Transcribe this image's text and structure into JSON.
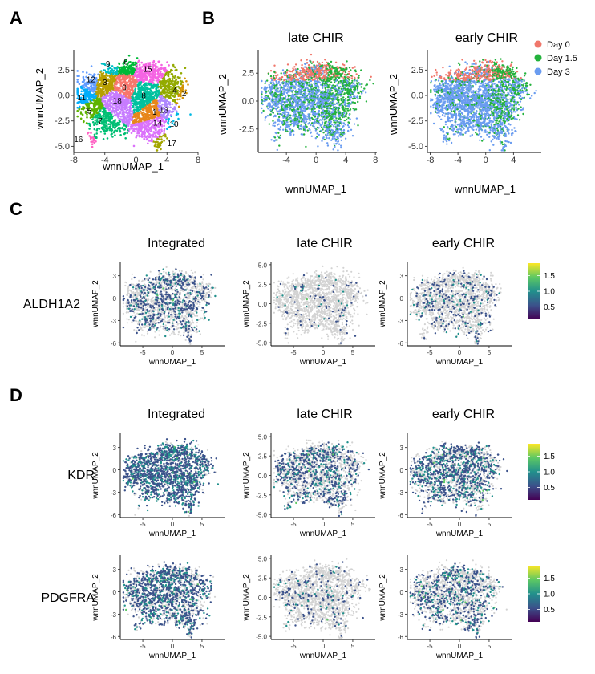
{
  "panels": {
    "A": "A",
    "B": "B",
    "C": "C",
    "D": "D"
  },
  "colors": {
    "grey": "#d3d3d3",
    "day0": "#f0776b",
    "day15": "#23b23c",
    "day3": "#6a9cf0",
    "viridis": [
      "#440154",
      "#3b528b",
      "#21908c",
      "#5dc863",
      "#fde725"
    ]
  },
  "chart_data": [
    {
      "id": "A",
      "type": "scatter",
      "xlabel": "wnnUMAP_1",
      "ylabel": "wnnUMAP_2",
      "xticks": [
        "-8",
        "-4",
        "0",
        "4",
        "8"
      ],
      "yticks": [
        "2.5",
        "0.0",
        "-2.5",
        "-5.0"
      ],
      "xlim": [
        -8,
        8
      ],
      "ylim": [
        -5.6,
        4.5
      ],
      "clusters": [
        {
          "label": "0",
          "x": -1.5,
          "y": 0.8,
          "color": "#f8766d"
        },
        {
          "label": "1",
          "x": 2.4,
          "y": -1.6,
          "color": "#e7861b"
        },
        {
          "label": "2",
          "x": 6.2,
          "y": 0.2,
          "color": "#d39200"
        },
        {
          "label": "3",
          "x": -4.0,
          "y": 1.3,
          "color": "#b79f00"
        },
        {
          "label": "4",
          "x": 5.0,
          "y": 0.5,
          "color": "#93aa00"
        },
        {
          "label": "5",
          "x": -6.0,
          "y": -1.5,
          "color": "#5eb300"
        },
        {
          "label": "6",
          "x": -1.3,
          "y": 3.3,
          "color": "#00ba38"
        },
        {
          "label": "7",
          "x": -4.6,
          "y": -2.5,
          "color": "#00bf74"
        },
        {
          "label": "8",
          "x": 1.0,
          "y": 0.0,
          "color": "#00c19f"
        },
        {
          "label": "9",
          "x": -3.6,
          "y": 3.1,
          "color": "#00bfc4"
        },
        {
          "label": "10",
          "x": 4.9,
          "y": -2.8,
          "color": "#00b9e3"
        },
        {
          "label": "11",
          "x": -7.0,
          "y": -0.2,
          "color": "#00adfa"
        },
        {
          "label": "12",
          "x": -5.8,
          "y": 1.6,
          "color": "#619cff"
        },
        {
          "label": "13",
          "x": 3.6,
          "y": -1.4,
          "color": "#ae87ff"
        },
        {
          "label": "14",
          "x": 2.8,
          "y": -2.7,
          "color": "#db72fb"
        },
        {
          "label": "15",
          "x": 1.5,
          "y": 2.6,
          "color": "#f564e3"
        },
        {
          "label": "16",
          "x": -7.4,
          "y": -4.3,
          "color": "#ff61c3"
        },
        {
          "label": "17",
          "x": 4.6,
          "y": -4.7,
          "color": "#a3a500"
        },
        {
          "label": "18",
          "x": -2.4,
          "y": -0.5,
          "color": "#c77cff"
        }
      ]
    },
    {
      "id": "B",
      "type": "scatter",
      "xlabel": "wnnUMAP_1",
      "ylabel": "wnnUMAP_2",
      "legend": [
        "Day 0",
        "Day 1.5",
        "Day 3"
      ],
      "legend_position": "top-right",
      "subplots": [
        {
          "title": "late CHIR",
          "xticks": [
            "-4",
            "0",
            "4",
            "8"
          ],
          "yticks": [
            "2.5",
            "0.0",
            "-2.5"
          ],
          "xlim": [
            -7.8,
            8.2
          ],
          "ylim": [
            -4.6,
            4.6
          ]
        },
        {
          "title": "early CHIR",
          "xticks": [
            "-8",
            "-4",
            "0",
            "4"
          ],
          "yticks": [
            "2.5",
            "0.0",
            "-2.5",
            "-5.0"
          ],
          "xlim": [
            -8.4,
            8
          ],
          "ylim": [
            -5.6,
            4.5
          ]
        }
      ]
    },
    {
      "id": "C",
      "type": "scatter",
      "feature": "ALDH1A2",
      "colorbar_ticks": [
        "1.5",
        "1.0",
        "0.5"
      ],
      "subplots": [
        {
          "title": "Integrated",
          "xticks": [
            "-5",
            "0",
            "5"
          ],
          "yticks": [
            "3",
            "0",
            "-3",
            "-6"
          ],
          "density": 0.32,
          "scale": 0.75
        },
        {
          "title": "late CHIR",
          "xticks": [
            "-5",
            "0",
            "5"
          ],
          "yticks": [
            "5.0",
            "2.5",
            "0.0",
            "-2.5",
            "-5.0"
          ],
          "density": 0.05,
          "scale": 0.75
        },
        {
          "title": "early CHIR",
          "xticks": [
            "-5",
            "0",
            "5"
          ],
          "yticks": [
            "3",
            "0",
            "-3",
            "-6"
          ],
          "density": 0.16,
          "scale": 0.75
        }
      ]
    },
    {
      "id": "D",
      "type": "scatter",
      "colorbar_ticks": [
        "1.5",
        "1.0",
        "0.5"
      ],
      "rows": [
        {
          "feature": "KDR",
          "subplots": [
            {
              "title": "Integrated",
              "xticks": [
                "-5",
                "0",
                "5"
              ],
              "yticks": [
                "3",
                "0",
                "-3",
                "-6"
              ],
              "density": 0.82,
              "scale": 0.85
            },
            {
              "title": "late CHIR",
              "xticks": [
                "-5",
                "0",
                "5"
              ],
              "yticks": [
                "5.0",
                "2.5",
                "0.0",
                "-2.5",
                "-5.0"
              ],
              "density": 0.38,
              "scale": 0.85
            },
            {
              "title": "early CHIR",
              "xticks": [
                "-5",
                "0",
                "5"
              ],
              "yticks": [
                "3",
                "0",
                "-3",
                "-6"
              ],
              "density": 0.52,
              "scale": 0.85
            }
          ]
        },
        {
          "feature": "PDGFRA",
          "subplots": [
            {
              "title": "",
              "xticks": [
                "-5",
                "0",
                "5"
              ],
              "yticks": [
                "3",
                "0",
                "-3",
                "-6"
              ],
              "density": 0.58,
              "scale": 0.8
            },
            {
              "title": "",
              "xticks": [
                "-5",
                "0",
                "5"
              ],
              "yticks": [
                "5.0",
                "2.5",
                "0.0",
                "-2.5",
                "-5.0"
              ],
              "density": 0.1,
              "scale": 0.8
            },
            {
              "title": "",
              "xticks": [
                "-5",
                "0",
                "5"
              ],
              "yticks": [
                "3",
                "0",
                "-3",
                "-6"
              ],
              "density": 0.32,
              "scale": 0.8
            }
          ]
        }
      ]
    }
  ]
}
